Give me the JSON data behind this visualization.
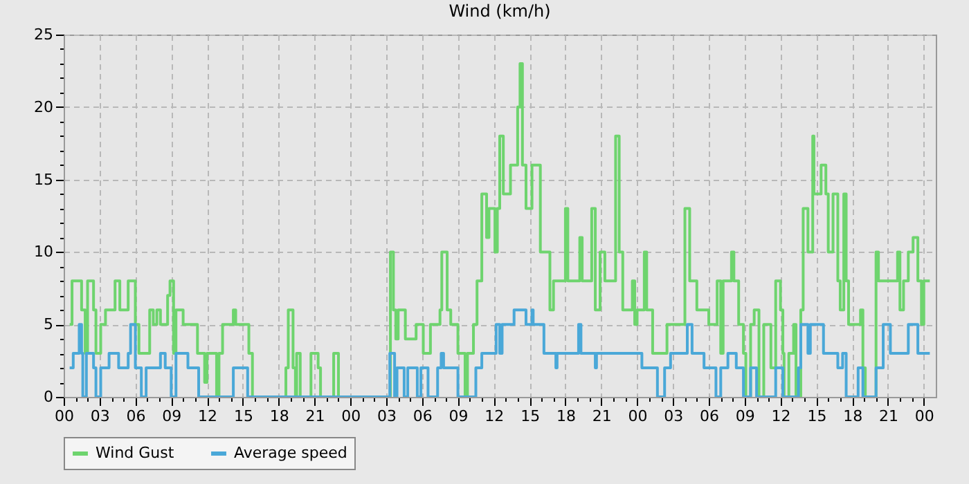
{
  "chart_data": {
    "type": "step",
    "title": "Wind (km/h)",
    "legend": "bottom",
    "grid": true,
    "marker": "none",
    "xlim": [
      0,
      73
    ],
    "ylim": [
      0,
      25
    ],
    "xticks": [
      {
        "value": 0,
        "label": "00"
      },
      {
        "value": 1,
        "label": null
      },
      {
        "value": 2,
        "label": null
      },
      {
        "value": 3,
        "label": "03"
      },
      {
        "value": 4,
        "label": null
      },
      {
        "value": 5,
        "label": null
      },
      {
        "value": 6,
        "label": "06"
      },
      {
        "value": 7,
        "label": null
      },
      {
        "value": 8,
        "label": null
      },
      {
        "value": 9,
        "label": "09"
      },
      {
        "value": 10,
        "label": null
      },
      {
        "value": 11,
        "label": null
      },
      {
        "value": 12,
        "label": "12"
      },
      {
        "value": 13,
        "label": null
      },
      {
        "value": 14,
        "label": null
      },
      {
        "value": 15,
        "label": "15"
      },
      {
        "value": 16,
        "label": null
      },
      {
        "value": 17,
        "label": null
      },
      {
        "value": 18,
        "label": "18"
      },
      {
        "value": 19,
        "label": null
      },
      {
        "value": 20,
        "label": null
      },
      {
        "value": 21,
        "label": "21"
      },
      {
        "value": 22,
        "label": null
      },
      {
        "value": 23,
        "label": null
      },
      {
        "value": 24,
        "label": "00"
      },
      {
        "value": 25,
        "label": null
      },
      {
        "value": 26,
        "label": null
      },
      {
        "value": 27,
        "label": "03"
      },
      {
        "value": 28,
        "label": null
      },
      {
        "value": 29,
        "label": null
      },
      {
        "value": 30,
        "label": "06"
      },
      {
        "value": 31,
        "label": null
      },
      {
        "value": 32,
        "label": null
      },
      {
        "value": 33,
        "label": "09"
      },
      {
        "value": 34,
        "label": null
      },
      {
        "value": 35,
        "label": null
      },
      {
        "value": 36,
        "label": "12"
      },
      {
        "value": 37,
        "label": null
      },
      {
        "value": 38,
        "label": null
      },
      {
        "value": 39,
        "label": "15"
      },
      {
        "value": 40,
        "label": null
      },
      {
        "value": 41,
        "label": null
      },
      {
        "value": 42,
        "label": "18"
      },
      {
        "value": 43,
        "label": null
      },
      {
        "value": 44,
        "label": null
      },
      {
        "value": 45,
        "label": "21"
      },
      {
        "value": 46,
        "label": null
      },
      {
        "value": 47,
        "label": null
      },
      {
        "value": 48,
        "label": "00"
      },
      {
        "value": 49,
        "label": null
      },
      {
        "value": 50,
        "label": null
      },
      {
        "value": 51,
        "label": "03"
      },
      {
        "value": 52,
        "label": null
      },
      {
        "value": 53,
        "label": null
      },
      {
        "value": 54,
        "label": "06"
      },
      {
        "value": 55,
        "label": null
      },
      {
        "value": 56,
        "label": null
      },
      {
        "value": 57,
        "label": "09"
      },
      {
        "value": 58,
        "label": null
      },
      {
        "value": 59,
        "label": null
      },
      {
        "value": 60,
        "label": "12"
      },
      {
        "value": 61,
        "label": null
      },
      {
        "value": 62,
        "label": null
      },
      {
        "value": 63,
        "label": "15"
      },
      {
        "value": 64,
        "label": null
      },
      {
        "value": 65,
        "label": null
      },
      {
        "value": 66,
        "label": "18"
      },
      {
        "value": 67,
        "label": null
      },
      {
        "value": 68,
        "label": null
      },
      {
        "value": 69,
        "label": "21"
      },
      {
        "value": 70,
        "label": null
      },
      {
        "value": 71,
        "label": null
      },
      {
        "value": 72,
        "label": "00"
      }
    ],
    "yticks": [
      0,
      {
        "value": 1,
        "label": null
      },
      {
        "value": 2,
        "label": null
      },
      {
        "value": 3,
        "label": null
      },
      {
        "value": 4,
        "label": null
      },
      5,
      {
        "value": 6,
        "label": null
      },
      {
        "value": 7,
        "label": null
      },
      {
        "value": 8,
        "label": null
      },
      {
        "value": 9,
        "label": null
      },
      10,
      {
        "value": 11,
        "label": null
      },
      {
        "value": 12,
        "label": null
      },
      {
        "value": 13,
        "label": null
      },
      {
        "value": 14,
        "label": null
      },
      15,
      {
        "value": 16,
        "label": null
      },
      {
        "value": 17,
        "label": null
      },
      {
        "value": 18,
        "label": null
      },
      {
        "value": 19,
        "label": null
      },
      20,
      {
        "value": 21,
        "label": null
      },
      {
        "value": 22,
        "label": null
      },
      {
        "value": 23,
        "label": null
      },
      {
        "value": 24,
        "label": null
      },
      25
    ],
    "series": [
      {
        "name": "Wind Gust",
        "color": "#6ed46e",
        "x": [
          0.5,
          0.7,
          1.5,
          1.8,
          2.0,
          2.5,
          2.7,
          3.1,
          3.5,
          4.3,
          4.7,
          5.4,
          6.0,
          6.3,
          7.2,
          7.5,
          7.8,
          8.1,
          8.7,
          8.9,
          9.2,
          9.4,
          10.0,
          11.2,
          11.8,
          12.0,
          12.8,
          13.0,
          13.3,
          14.2,
          14.4,
          15.5,
          15.8,
          18.6,
          18.8,
          19.2,
          19.4,
          19.5,
          19.8,
          20.7,
          21.3,
          21.5,
          22.6,
          23.0,
          27.35,
          27.6,
          27.8,
          28.0,
          28.6,
          29.5,
          30.1,
          30.7,
          31.5,
          31.65,
          32.1,
          32.4,
          33.0,
          33.6,
          33.8,
          34.3,
          34.6,
          35.0,
          35.4,
          35.6,
          36.1,
          36.3,
          36.5,
          36.8,
          37.4,
          38.0,
          38.2,
          38.4,
          38.7,
          39.2,
          39.9,
          40.7,
          41.0,
          42.0,
          42.2,
          43.2,
          43.4,
          44.2,
          44.5,
          44.9,
          45.3,
          46.2,
          46.5,
          46.8,
          47.6,
          47.8,
          48.0,
          48.6,
          48.8,
          49.3,
          50.5,
          52.0,
          52.4,
          53.0,
          54.0,
          54.7,
          55.0,
          55.2,
          55.9,
          56.1,
          56.5,
          56.9,
          57.1,
          57.5,
          57.8,
          58.2,
          58.6,
          59.2,
          59.6,
          60.0,
          60.2,
          60.3,
          60.7,
          61.1,
          61.3,
          61.7,
          61.9,
          62.3,
          62.7,
          62.8,
          63.4,
          63.8,
          64.0,
          64.4,
          64.8,
          65.0,
          65.3,
          65.5,
          65.7,
          66.7,
          66.9,
          67.1,
          68.0,
          68.2,
          69.8,
          70.0,
          70.3,
          70.7,
          71.1,
          71.5,
          71.8,
          72.0,
          72.5
        ],
        "values": [
          5,
          8,
          6,
          3,
          8,
          6,
          3,
          5,
          6,
          8,
          6,
          8,
          5,
          3,
          6,
          5,
          6,
          5,
          7,
          8,
          3,
          6,
          5,
          3,
          1,
          3,
          0,
          3,
          5,
          6,
          5,
          3,
          0,
          2,
          6,
          2,
          0,
          3,
          0,
          3,
          2,
          0,
          3,
          0,
          10,
          6,
          4,
          6,
          4,
          5,
          3,
          5,
          6,
          10,
          6,
          5,
          3,
          0,
          3,
          5,
          8,
          14,
          11,
          13,
          10,
          13,
          18,
          14,
          16,
          20,
          23,
          16,
          13,
          16,
          10,
          6,
          8,
          13,
          8,
          11,
          8,
          13,
          6,
          10,
          8,
          18,
          10,
          6,
          8,
          5,
          6,
          10,
          6,
          3,
          5,
          13,
          8,
          6,
          5,
          8,
          3,
          8,
          10,
          8,
          5,
          3,
          0,
          5,
          6,
          0,
          5,
          2,
          8,
          6,
          3,
          0,
          3,
          5,
          0,
          6,
          13,
          10,
          18,
          14,
          16,
          14,
          10,
          14,
          8,
          6,
          14,
          8,
          5,
          6,
          2,
          0,
          10,
          8,
          10,
          6,
          8,
          10,
          11,
          8,
          5,
          8,
          8
        ]
      },
      {
        "name": "Average speed",
        "color": "#4aa8d8",
        "x": [
          0.5,
          0.8,
          1.3,
          1.5,
          1.6,
          1.9,
          2.5,
          2.7,
          3.1,
          3.8,
          4.6,
          5.4,
          5.6,
          6.0,
          6.5,
          6.9,
          8.1,
          8.5,
          9.0,
          9.4,
          10.4,
          11.3,
          14.2,
          15.4,
          27.3,
          27.7,
          27.9,
          28.5,
          28.8,
          29.6,
          29.9,
          30.5,
          31.3,
          31.6,
          31.8,
          33.0,
          34.5,
          35.0,
          36.2,
          36.5,
          36.7,
          37.7,
          38.7,
          39.2,
          39.3,
          40.2,
          41.2,
          41.3,
          43.1,
          43.3,
          44.5,
          44.6,
          48.4,
          49.7,
          50.3,
          50.8,
          52.2,
          52.6,
          53.6,
          54.6,
          55.0,
          55.6,
          56.3,
          56.9,
          57.5,
          58.0,
          59.6,
          60.2,
          61.5,
          61.7,
          62.3,
          62.5,
          63.6,
          64.8,
          65.2,
          65.5,
          66.5,
          66.9,
          68.0,
          68.6,
          69.2,
          70.7,
          71.5,
          72.5
        ],
        "values": [
          2,
          3,
          5,
          3,
          0,
          3,
          2,
          0,
          2,
          3,
          2,
          3,
          5,
          2,
          0,
          2,
          3,
          2,
          0,
          3,
          2,
          0,
          2,
          0,
          3,
          0,
          2,
          0,
          2,
          0,
          2,
          0,
          2,
          3,
          2,
          0,
          2,
          3,
          5,
          3,
          5,
          6,
          5,
          6,
          5,
          3,
          2,
          3,
          5,
          3,
          2,
          3,
          2,
          0,
          2,
          3,
          5,
          3,
          2,
          0,
          2,
          3,
          2,
          0,
          2,
          0,
          2,
          0,
          2,
          5,
          3,
          5,
          3,
          2,
          3,
          0,
          2,
          0,
          2,
          5,
          3,
          5,
          3,
          3
        ]
      }
    ]
  }
}
